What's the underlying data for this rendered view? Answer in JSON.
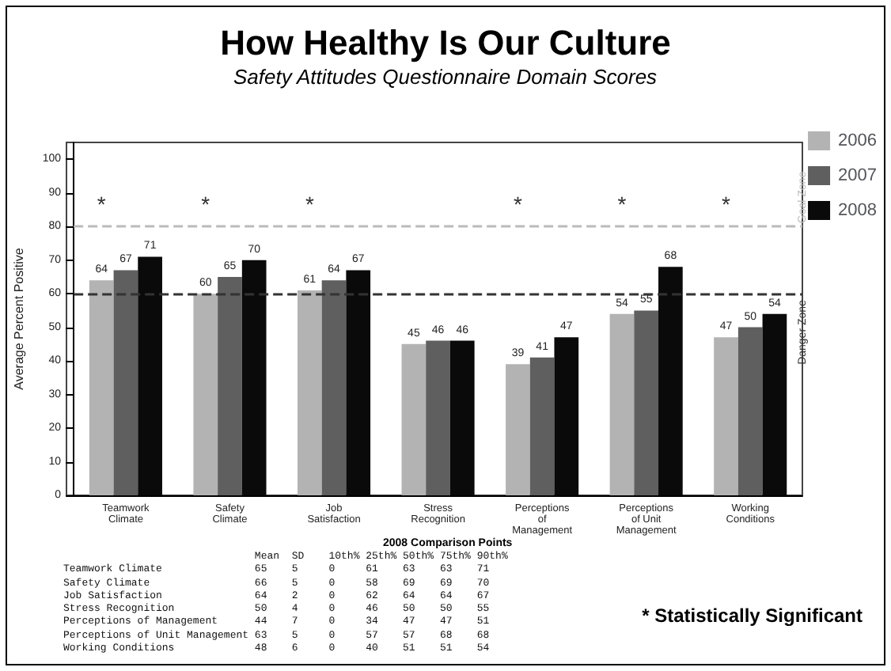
{
  "chart_data": {
    "type": "bar",
    "title": "How Healthy Is Our Culture",
    "subtitle": "Safety Attitudes Questionnaire Domain Scores",
    "ylabel": "Average Percent Positive",
    "categories": [
      "Teamwork\nClimate",
      "Safety\nClimate",
      "Job\nSatisfaction",
      "Stress\nRecognition",
      "Perceptions\nof\nManagement",
      "Perceptions\nof Unit\nManagement",
      "Working\nConditions"
    ],
    "series": [
      {
        "name": "2006",
        "color": "#b3b3b3",
        "values": [
          64,
          60,
          61,
          45,
          39,
          54,
          47
        ]
      },
      {
        "name": "2007",
        "color": "#5f5f5f",
        "values": [
          67,
          65,
          64,
          46,
          41,
          55,
          50
        ]
      },
      {
        "name": "2008",
        "color": "#0a0a0a",
        "values": [
          71,
          70,
          67,
          46,
          47,
          68,
          54
        ]
      }
    ],
    "ylim": [
      0,
      105
    ],
    "yticks": [
      0,
      10,
      20,
      30,
      40,
      50,
      60,
      70,
      80,
      90,
      100
    ],
    "grid": false,
    "legend": "right",
    "data_labels": true,
    "ref_lines": [
      {
        "axis": "y",
        "value": 80,
        "label": "Goal Zone",
        "color": "#bbbbbb",
        "line_style": "dashed"
      },
      {
        "axis": "y",
        "value": 60,
        "label": "Danger Zone",
        "color": "#333333",
        "line_style": "dashed"
      }
    ],
    "annotations": [
      {
        "text": "*",
        "x": "Teamwork\nClimate",
        "y": 80
      },
      {
        "text": "*",
        "x": "Safety\nClimate",
        "y": 80
      },
      {
        "text": "*",
        "x": "Job\nSatisfaction",
        "y": 80
      },
      {
        "text": "*",
        "x": "Perceptions\nof\nManagement",
        "y": 80
      },
      {
        "text": "*",
        "x": "Perceptions\nof Unit\nManagement",
        "y": 80
      },
      {
        "text": "*",
        "x": "Working\nConditions",
        "y": 80
      },
      "* Statistically Significant",
      "2008 Comparison Points",
      "Mean SD 10th% 25th% 50th% 75th% 90th%",
      "Teamwork Climate 65 5 0 61 63 63 71",
      "Safety Climate 66 5 0 58 69 69 70",
      "Job Satisfaction 64 2 0 62 64 64 67",
      "Stress Recognition 50 4 0 46 50 50 55",
      "Perceptions of Management 44 7 0 34 47 47 51",
      "Perceptions of Unit Management 63 5 0 57 57 68 68",
      "Working Conditions 48 6 0 40 51 51 54"
    ]
  }
}
